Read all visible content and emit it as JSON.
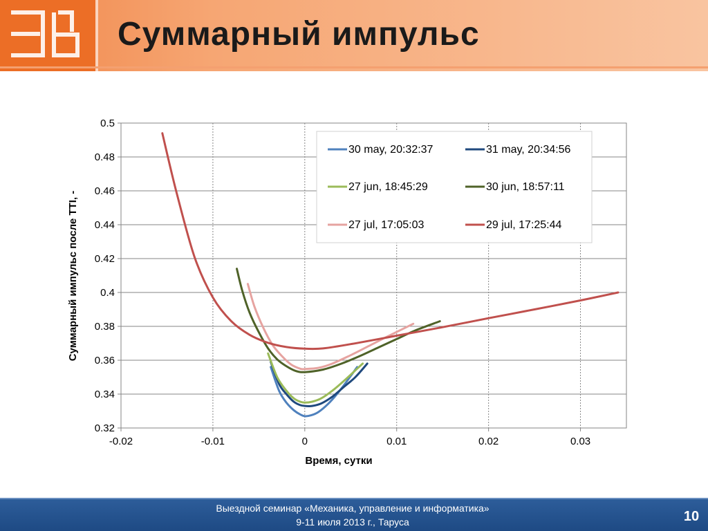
{
  "slide": {
    "title": "Суммарный импульс",
    "page_number": "10"
  },
  "footer": {
    "line1": "Выездной семинар «Механика, управление и информатика»",
    "line2": "9-11 июля 2013 г., Таруса"
  },
  "colors": {
    "header_orange": "#ec6e26",
    "footer_blue": "#1e4a84"
  },
  "chart_data": {
    "type": "line",
    "title": "",
    "xlabel": "Время, сутки",
    "ylabel": "Суммарный импульс после TTI, -",
    "xlim": [
      -0.02,
      0.035
    ],
    "ylim": [
      0.32,
      0.5
    ],
    "xticks": [
      -0.02,
      -0.01,
      0,
      0.01,
      0.02,
      0.03
    ],
    "xtick_labels": [
      "-0.02",
      "-0.01",
      "0",
      "0.01",
      "0.02",
      "0.03"
    ],
    "yticks": [
      0.32,
      0.34,
      0.36,
      0.38,
      0.4,
      0.42,
      0.44,
      0.46,
      0.48,
      0.5
    ],
    "ytick_labels": [
      "0.32",
      "0.34",
      "0.36",
      "0.38",
      "0.4",
      "0.42",
      "0.44",
      "0.46",
      "0.48",
      "0.5"
    ],
    "grid": true,
    "legend_position": "top-right",
    "series": [
      {
        "name": "30 may, 20:32:37",
        "color": "#4f81bd",
        "x": [
          -0.0037,
          -0.0028,
          -0.002,
          -0.0012,
          -0.0005,
          0.0,
          0.0007,
          0.0015,
          0.0025,
          0.0035,
          0.0045,
          0.0057
        ],
        "y": [
          0.356,
          0.342,
          0.335,
          0.3305,
          0.328,
          0.327,
          0.3275,
          0.3295,
          0.334,
          0.34,
          0.347,
          0.356
        ]
      },
      {
        "name": "31 may, 20:34:56",
        "color": "#1f497d",
        "x": [
          -0.0037,
          -0.0028,
          -0.002,
          -0.0012,
          -0.0005,
          0.0,
          0.0008,
          0.0018,
          0.003,
          0.0042,
          0.0055,
          0.0068
        ],
        "y": [
          0.359,
          0.346,
          0.34,
          0.3355,
          0.3335,
          0.333,
          0.333,
          0.3345,
          0.3385,
          0.344,
          0.35,
          0.358
        ]
      },
      {
        "name": "27 jun, 18:45:29",
        "color": "#9bbb59",
        "x": [
          -0.004,
          -0.003,
          -0.002,
          -0.0012,
          -0.0005,
          0.0,
          0.0008,
          0.0018,
          0.003,
          0.0042,
          0.0055,
          0.0063
        ],
        "y": [
          0.364,
          0.35,
          0.342,
          0.3375,
          0.3355,
          0.335,
          0.3355,
          0.3375,
          0.342,
          0.3475,
          0.354,
          0.358
        ]
      },
      {
        "name": "30 jun, 18:57:11",
        "color": "#4f6228",
        "x": [
          -0.0074,
          -0.0068,
          -0.006,
          -0.005,
          -0.004,
          -0.003,
          -0.002,
          -0.001,
          0.0,
          0.002,
          0.004,
          0.006,
          0.008,
          0.01,
          0.012,
          0.0147
        ],
        "y": [
          0.414,
          0.401,
          0.388,
          0.3765,
          0.367,
          0.3605,
          0.3565,
          0.3537,
          0.353,
          0.3545,
          0.358,
          0.3625,
          0.3675,
          0.3725,
          0.3775,
          0.383
        ]
      },
      {
        "name": "27 jul, 17:05:03",
        "color": "#e6a3a0",
        "x": [
          -0.0062,
          -0.0055,
          -0.0045,
          -0.0035,
          -0.0025,
          -0.0015,
          -0.0005,
          0.0,
          0.0015,
          0.003,
          0.005,
          0.007,
          0.009,
          0.0118
        ],
        "y": [
          0.405,
          0.392,
          0.379,
          0.369,
          0.3625,
          0.3575,
          0.355,
          0.3548,
          0.3555,
          0.358,
          0.363,
          0.3685,
          0.374,
          0.3815
        ]
      },
      {
        "name": "29 jul, 17:25:44",
        "color": "#c0504d",
        "x": [
          -0.0155,
          -0.014,
          -0.012,
          -0.01,
          -0.008,
          -0.006,
          -0.004,
          -0.002,
          0.0,
          0.002,
          0.005,
          0.01,
          0.015,
          0.02,
          0.025,
          0.03,
          0.0341
        ],
        "y": [
          0.494,
          0.46,
          0.421,
          0.397,
          0.383,
          0.375,
          0.3703,
          0.3678,
          0.3668,
          0.367,
          0.3695,
          0.3745,
          0.3795,
          0.3848,
          0.39,
          0.3953,
          0.4
        ]
      }
    ]
  }
}
